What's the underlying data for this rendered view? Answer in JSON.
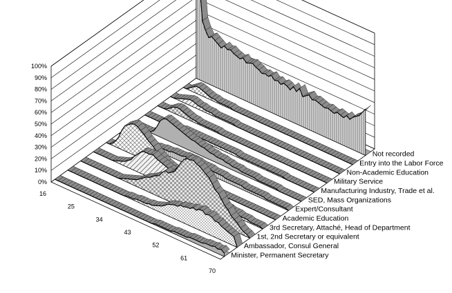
{
  "chart_data": {
    "type": "area",
    "subtype": "3d-ribbon-percent",
    "title": "",
    "xlabel": "",
    "ylabel": "",
    "ylim": [
      0,
      100
    ],
    "y_ticks": [
      "0%",
      "10%",
      "20%",
      "30%",
      "40%",
      "50%",
      "60%",
      "70%",
      "80%",
      "90%",
      "100%"
    ],
    "x_ticks": [
      "16",
      "25",
      "34",
      "43",
      "52",
      "61",
      "70"
    ],
    "x": [
      16,
      17,
      18,
      19,
      20,
      21,
      22,
      23,
      24,
      25,
      26,
      27,
      28,
      29,
      30,
      31,
      32,
      33,
      34,
      35,
      36,
      37,
      38,
      39,
      40,
      41,
      42,
      43,
      44,
      45,
      46,
      47,
      48,
      49,
      50,
      51,
      52,
      53,
      54,
      55,
      56,
      57,
      58,
      59,
      60,
      61,
      62,
      63,
      64,
      65,
      66,
      67,
      68,
      69,
      70
    ],
    "series": [
      {
        "name": "Minister, Permanent Secretary",
        "values": [
          0,
          0,
          0,
          0,
          0,
          0,
          0,
          0,
          0,
          0,
          0,
          0,
          0,
          0,
          0,
          0,
          0,
          0,
          0,
          0,
          0,
          0,
          0,
          0,
          0,
          0,
          0,
          0,
          0,
          0,
          0,
          0,
          1,
          1,
          1,
          1,
          1,
          1,
          2,
          2,
          2,
          2,
          2,
          3,
          3,
          3,
          3,
          3,
          4,
          4,
          4,
          5,
          4,
          5,
          3
        ]
      },
      {
        "name": "Ambassador, Consul General",
        "values": [
          0,
          0,
          0,
          0,
          0,
          0,
          0,
          0,
          0,
          0,
          0,
          0,
          0,
          0,
          0,
          0,
          0,
          0,
          0,
          1,
          1,
          1,
          2,
          2,
          2,
          2,
          3,
          3,
          4,
          5,
          6,
          8,
          10,
          11,
          12,
          12,
          14,
          14,
          15,
          15,
          17,
          16,
          18,
          18,
          16,
          17,
          16,
          14,
          14,
          12,
          11,
          10,
          9,
          8,
          0
        ]
      },
      {
        "name": "1st, 2nd Secretary or equivalent",
        "values": [
          0,
          0,
          0,
          0,
          0,
          0,
          0,
          0,
          0,
          0,
          0,
          0,
          0,
          1,
          2,
          3,
          4,
          5,
          6,
          8,
          10,
          12,
          13,
          15,
          17,
          18,
          22,
          25,
          24,
          26,
          28,
          33,
          38,
          42,
          44,
          44,
          45,
          43,
          42,
          40,
          38,
          36,
          32,
          28,
          26,
          22,
          18,
          16,
          12,
          10,
          8,
          5,
          3,
          2,
          0
        ]
      },
      {
        "name": "3rd Secretary, Attaché, Head of Department",
        "values": [
          0,
          0,
          0,
          0,
          0,
          0,
          0,
          1,
          2,
          3,
          4,
          6,
          8,
          12,
          15,
          18,
          20,
          20,
          20,
          21,
          19,
          18,
          17,
          16,
          15,
          14,
          13,
          12,
          12,
          11,
          10,
          10,
          9,
          8,
          8,
          7,
          7,
          6,
          6,
          6,
          5,
          5,
          4,
          4,
          3,
          3,
          3,
          2,
          2,
          2,
          1,
          1,
          1,
          1,
          0
        ]
      },
      {
        "name": "Academic Education",
        "values": [
          0,
          0,
          2,
          5,
          10,
          17,
          22,
          24,
          26,
          27,
          26,
          24,
          22,
          19,
          17,
          15,
          12,
          10,
          8,
          6,
          5,
          4,
          3,
          2,
          2,
          2,
          2,
          1,
          1,
          1,
          1,
          1,
          1,
          1,
          1,
          0,
          0,
          0,
          0,
          0,
          0,
          0,
          0,
          0,
          0,
          0,
          0,
          0,
          0,
          0,
          0,
          0,
          0,
          0,
          0
        ]
      },
      {
        "name": "Expert/Consultant",
        "values": [
          0,
          0,
          0,
          0,
          0,
          0,
          0,
          0,
          1,
          1,
          2,
          2,
          3,
          3,
          4,
          4,
          4,
          5,
          5,
          5,
          5,
          6,
          6,
          6,
          6,
          6,
          5,
          5,
          5,
          5,
          4,
          4,
          4,
          4,
          3,
          3,
          3,
          3,
          3,
          3,
          2,
          2,
          2,
          2,
          2,
          2,
          2,
          1,
          1,
          1,
          1,
          1,
          1,
          1,
          0
        ]
      },
      {
        "name": "SED, Mass Organizations",
        "values": [
          0,
          0,
          0,
          0,
          0,
          0,
          1,
          3,
          8,
          14,
          17,
          18,
          17,
          16,
          15,
          14,
          13,
          12,
          11,
          10,
          10,
          9,
          8,
          8,
          7,
          6,
          6,
          5,
          5,
          5,
          4,
          4,
          3,
          3,
          3,
          2,
          2,
          2,
          2,
          2,
          1,
          1,
          1,
          1,
          1,
          1,
          1,
          0,
          0,
          0,
          0,
          0,
          0,
          0,
          0
        ]
      },
      {
        "name": "Manufacturing Industry, Trade et al.",
        "values": [
          0,
          0,
          0,
          0,
          0,
          0,
          0,
          0,
          0,
          1,
          1,
          1,
          2,
          2,
          2,
          2,
          2,
          2,
          2,
          2,
          2,
          2,
          2,
          2,
          2,
          2,
          2,
          2,
          2,
          2,
          1,
          1,
          1,
          1,
          1,
          1,
          1,
          1,
          1,
          1,
          1,
          1,
          1,
          1,
          1,
          0,
          0,
          0,
          0,
          0,
          0,
          0,
          0,
          0,
          0
        ]
      },
      {
        "name": "Military Service",
        "values": [
          0,
          0,
          0,
          1,
          3,
          5,
          6,
          6,
          5,
          4,
          3,
          2,
          2,
          1,
          1,
          1,
          1,
          1,
          1,
          1,
          0,
          0,
          0,
          0,
          0,
          0,
          0,
          0,
          0,
          0,
          0,
          0,
          0,
          0,
          0,
          0,
          0,
          0,
          0,
          0,
          0,
          0,
          0,
          0,
          0,
          0,
          0,
          0,
          0,
          0,
          0,
          0,
          0,
          0,
          0
        ]
      },
      {
        "name": "Non-Academic Education",
        "values": [
          0,
          0,
          1,
          2,
          3,
          4,
          5,
          5,
          4,
          3,
          3,
          2,
          2,
          2,
          1,
          1,
          1,
          1,
          1,
          1,
          1,
          0,
          0,
          0,
          0,
          0,
          0,
          0,
          0,
          0,
          0,
          0,
          0,
          0,
          0,
          0,
          0,
          0,
          0,
          0,
          0,
          0,
          0,
          0,
          0,
          0,
          0,
          0,
          0,
          0,
          0,
          0,
          0,
          0,
          0
        ]
      },
      {
        "name": "Entry into the Labor Force",
        "values": [
          0,
          0,
          2,
          4,
          6,
          6,
          5,
          4,
          3,
          2,
          2,
          1,
          1,
          1,
          1,
          1,
          0,
          0,
          0,
          0,
          0,
          0,
          0,
          0,
          0,
          0,
          0,
          0,
          0,
          0,
          0,
          0,
          0,
          0,
          0,
          0,
          0,
          0,
          0,
          0,
          0,
          0,
          0,
          0,
          0,
          0,
          0,
          0,
          0,
          0,
          0,
          0,
          0,
          0,
          0
        ]
      },
      {
        "name": "Not recorded",
        "values": [
          100,
          86,
          52,
          45,
          40,
          42,
          40,
          38,
          36,
          39,
          37,
          38,
          36,
          35,
          34,
          36,
          33,
          34,
          35,
          33,
          32,
          30,
          31,
          30,
          32,
          29,
          30,
          28,
          30,
          29,
          27,
          31,
          28,
          32,
          26,
          28,
          30,
          27,
          28,
          27,
          26,
          25,
          26,
          25,
          24,
          26,
          25,
          24,
          27,
          25,
          28,
          30,
          32,
          36,
          40
        ]
      }
    ],
    "legend": "depth-axis-right",
    "grid": true,
    "view": "3d-perspective"
  }
}
